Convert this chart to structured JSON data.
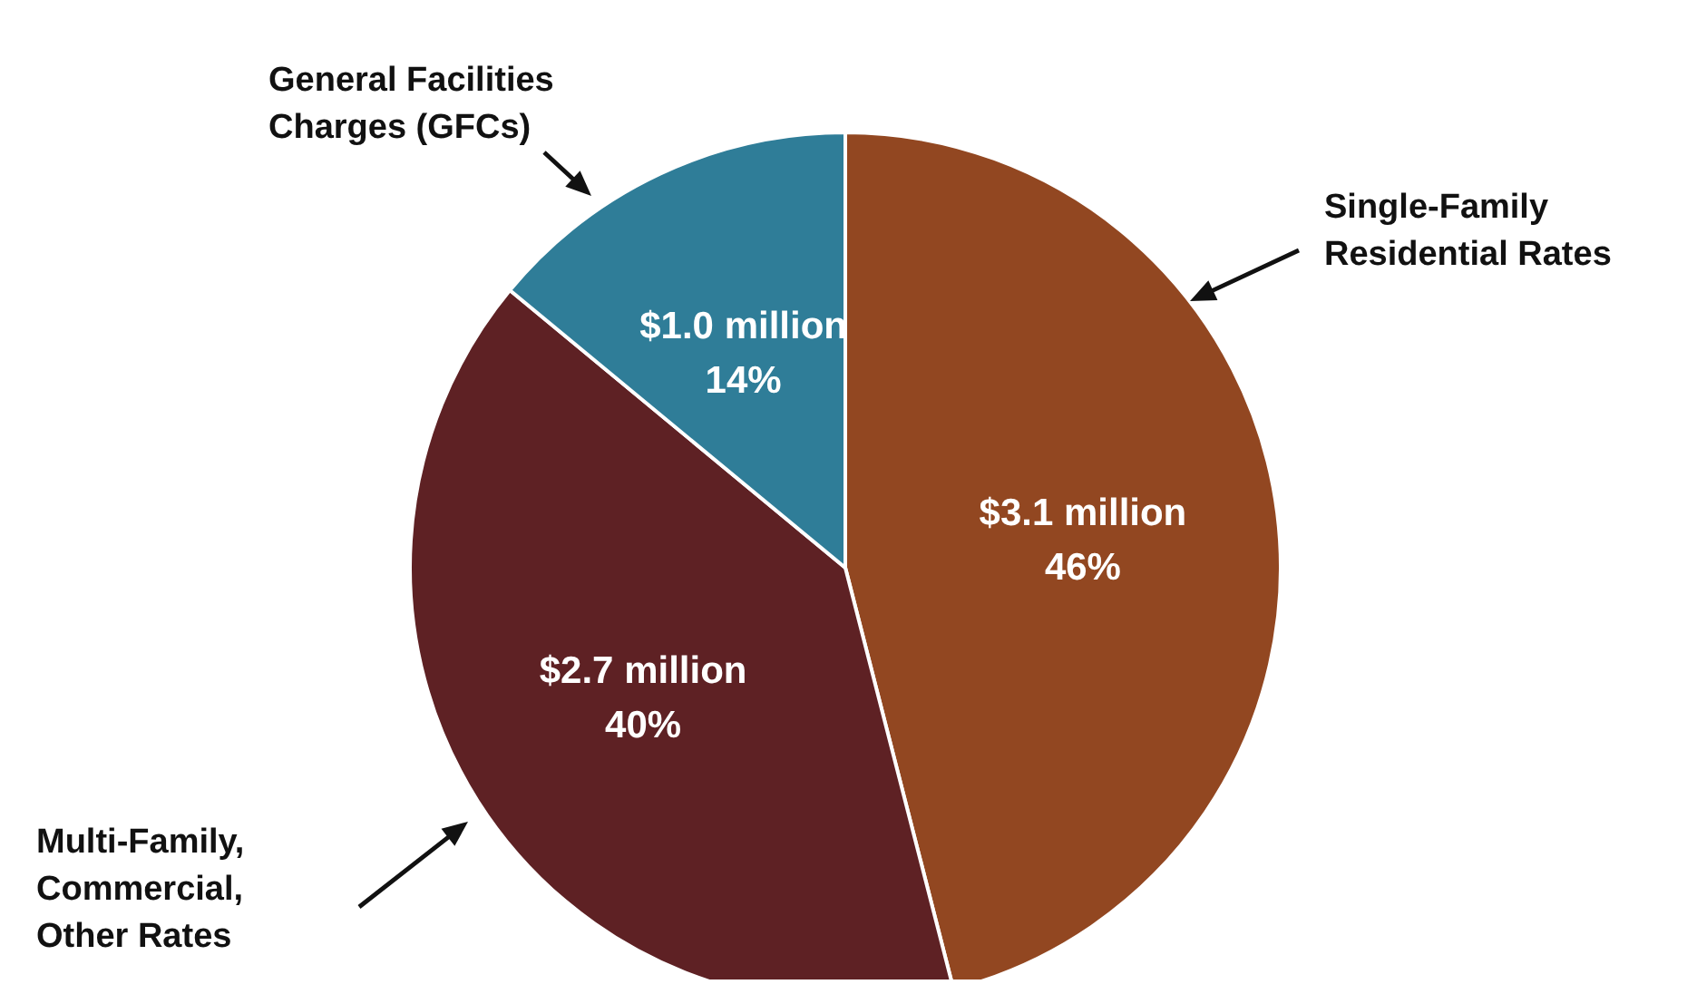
{
  "chart_data": {
    "type": "pie",
    "categories": [
      "Single-Family Residential Rates",
      "Multi-Family, Commercial, Other Rates",
      "General Facilities Charges (GFCs)"
    ],
    "values": [
      46,
      40,
      14
    ],
    "value_labels": [
      "$3.1 million\n46%",
      "$2.7 million\n40%",
      "$1.0 million\n14%"
    ],
    "colors": [
      "#924721",
      "#5e2124",
      "#2f7d98"
    ]
  }
}
